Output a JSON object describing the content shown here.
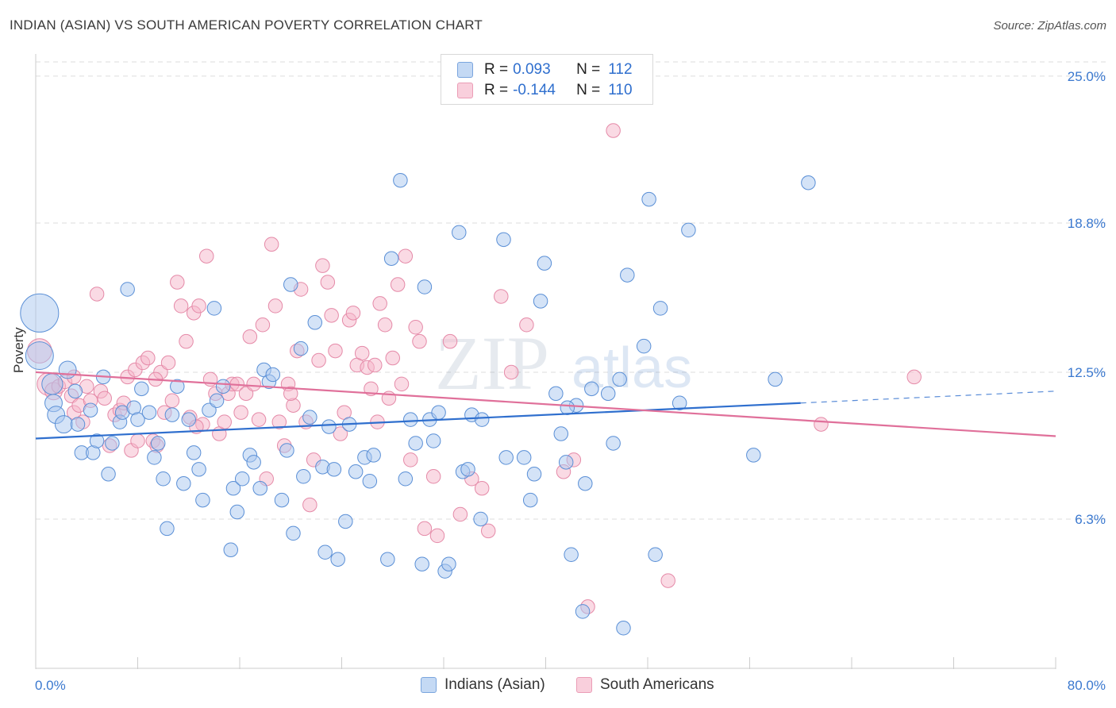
{
  "header": {
    "title": "INDIAN (ASIAN) VS SOUTH AMERICAN POVERTY CORRELATION CHART",
    "source": "Source: ZipAtlas.com"
  },
  "legend": {
    "rows": [
      {
        "r_label": "R =",
        "r_value": "0.093",
        "n_label": "N =",
        "n_value": "112"
      },
      {
        "r_label": "R =",
        "r_value": "-0.144",
        "n_label": "N =",
        "n_value": "110"
      }
    ]
  },
  "bottom_legend": {
    "indians": "Indians (Asian)",
    "south": "South Americans"
  },
  "watermark": {
    "zip": "ZIP",
    "atlas": "atlas"
  },
  "colors": {
    "blue_fill": "#a9c8ef",
    "blue_stroke": "#5a8fd6",
    "blue_line": "#2f6fce",
    "pink_fill": "#f5b6c9",
    "pink_stroke": "#e58aa8",
    "pink_line": "#e0709a",
    "tick_text": "#3a78cf",
    "grid": "#dddddd"
  },
  "chart_data": {
    "type": "scatter",
    "title": "INDIAN (ASIAN) VS SOUTH AMERICAN POVERTY CORRELATION CHART",
    "xlabel": "",
    "ylabel": "Poverty",
    "xlim": [
      0,
      80
    ],
    "ylim": [
      0,
      25.6
    ],
    "x_tick_labels": [
      "0.0%",
      "80.0%"
    ],
    "y_ticks": [
      6.3,
      12.5,
      18.8,
      25.0
    ],
    "y_tick_labels": [
      "6.3%",
      "12.5%",
      "18.8%",
      "25.0%"
    ],
    "grid": true,
    "legend_position": "top-center",
    "series": [
      {
        "name": "Indians (Asian)",
        "r": 0.093,
        "n": 112,
        "trend": {
          "x0": 0,
          "y0": 9.7,
          "x1": 60,
          "y1": 11.2,
          "dash_to": 80,
          "dash_y": 11.7
        },
        "points": [
          [
            0.3,
            15.0,
            2.2
          ],
          [
            0.3,
            13.2,
            1.6
          ],
          [
            1.3,
            12.0,
            1.2
          ],
          [
            1.4,
            11.2,
            1.0
          ],
          [
            1.6,
            10.7,
            1.0
          ],
          [
            2.2,
            10.3,
            1.0
          ],
          [
            2.5,
            12.6,
            1.0
          ],
          [
            3.1,
            11.7,
            0.8
          ],
          [
            3.3,
            10.3,
            0.8
          ],
          [
            3.6,
            9.1,
            0.8
          ],
          [
            4.3,
            10.9,
            0.8
          ],
          [
            4.5,
            9.1,
            0.8
          ],
          [
            4.8,
            9.6,
            0.8
          ],
          [
            5.3,
            12.3,
            0.8
          ],
          [
            5.7,
            8.2,
            0.8
          ],
          [
            6.0,
            9.5,
            0.8
          ],
          [
            6.6,
            10.4,
            0.8
          ],
          [
            6.8,
            10.8,
            0.8
          ],
          [
            7.2,
            16.0,
            0.8
          ],
          [
            7.7,
            11.0,
            0.8
          ],
          [
            8.0,
            10.5,
            0.8
          ],
          [
            8.3,
            11.8,
            0.8
          ],
          [
            8.9,
            10.8,
            0.8
          ],
          [
            9.3,
            8.9,
            0.8
          ],
          [
            9.6,
            9.5,
            0.8
          ],
          [
            10.0,
            8.0,
            0.8
          ],
          [
            10.3,
            5.9,
            0.8
          ],
          [
            10.7,
            10.7,
            0.8
          ],
          [
            11.1,
            11.9,
            0.8
          ],
          [
            11.6,
            7.8,
            0.8
          ],
          [
            12.0,
            10.5,
            0.8
          ],
          [
            12.4,
            9.1,
            0.8
          ],
          [
            12.8,
            8.4,
            0.8
          ],
          [
            13.1,
            7.1,
            0.8
          ],
          [
            13.6,
            10.9,
            0.8
          ],
          [
            14.0,
            15.2,
            0.8
          ],
          [
            14.2,
            11.3,
            0.8
          ],
          [
            14.7,
            11.9,
            0.8
          ],
          [
            15.3,
            5.0,
            0.8
          ],
          [
            15.5,
            7.6,
            0.8
          ],
          [
            15.8,
            6.6,
            0.8
          ],
          [
            16.2,
            8.0,
            0.8
          ],
          [
            16.8,
            9.0,
            0.8
          ],
          [
            17.1,
            8.7,
            0.8
          ],
          [
            17.6,
            7.6,
            0.8
          ],
          [
            17.9,
            12.6,
            0.8
          ],
          [
            18.3,
            12.1,
            0.8
          ],
          [
            18.6,
            12.4,
            0.8
          ],
          [
            19.3,
            7.1,
            0.8
          ],
          [
            19.7,
            9.2,
            0.8
          ],
          [
            20.0,
            16.2,
            0.8
          ],
          [
            20.2,
            5.7,
            0.8
          ],
          [
            20.8,
            13.5,
            0.8
          ],
          [
            21.0,
            8.1,
            0.8
          ],
          [
            21.5,
            10.6,
            0.8
          ],
          [
            21.9,
            14.6,
            0.8
          ],
          [
            22.5,
            8.5,
            0.8
          ],
          [
            22.7,
            4.9,
            0.8
          ],
          [
            23.0,
            10.2,
            0.8
          ],
          [
            23.4,
            8.4,
            0.8
          ],
          [
            23.7,
            4.6,
            0.8
          ],
          [
            24.3,
            6.2,
            0.8
          ],
          [
            24.6,
            10.3,
            0.8
          ],
          [
            25.1,
            8.3,
            0.8
          ],
          [
            25.8,
            8.9,
            0.8
          ],
          [
            26.2,
            7.9,
            0.8
          ],
          [
            26.5,
            9.0,
            0.8
          ],
          [
            27.6,
            4.6,
            0.8
          ],
          [
            27.9,
            17.3,
            0.8
          ],
          [
            28.6,
            20.6,
            0.8
          ],
          [
            29.0,
            8.0,
            0.8
          ],
          [
            29.4,
            10.5,
            0.8
          ],
          [
            29.8,
            9.5,
            0.8
          ],
          [
            30.3,
            4.4,
            0.8
          ],
          [
            30.5,
            16.1,
            0.8
          ],
          [
            30.9,
            10.5,
            0.8
          ],
          [
            31.2,
            9.6,
            0.8
          ],
          [
            31.6,
            10.8,
            0.8
          ],
          [
            32.1,
            4.1,
            0.8
          ],
          [
            32.4,
            4.4,
            0.8
          ],
          [
            33.2,
            18.4,
            0.8
          ],
          [
            33.5,
            8.3,
            0.8
          ],
          [
            33.9,
            8.4,
            0.8
          ],
          [
            34.2,
            10.7,
            0.8
          ],
          [
            34.9,
            6.3,
            0.8
          ],
          [
            35.0,
            10.5,
            0.8
          ],
          [
            36.7,
            18.1,
            0.8
          ],
          [
            36.9,
            8.9,
            0.8
          ],
          [
            38.3,
            8.9,
            0.8
          ],
          [
            38.8,
            7.1,
            0.8
          ],
          [
            39.1,
            8.2,
            0.8
          ],
          [
            39.6,
            15.5,
            0.8
          ],
          [
            39.9,
            17.1,
            0.8
          ],
          [
            40.8,
            11.6,
            0.8
          ],
          [
            41.2,
            9.9,
            0.8
          ],
          [
            41.6,
            8.7,
            0.8
          ],
          [
            42.0,
            4.8,
            0.8
          ],
          [
            42.4,
            11.1,
            0.8
          ],
          [
            42.9,
            2.4,
            0.8
          ],
          [
            43.1,
            7.8,
            0.8
          ],
          [
            43.6,
            11.8,
            0.8
          ],
          [
            44.9,
            11.6,
            0.8
          ],
          [
            45.3,
            9.5,
            0.8
          ],
          [
            45.8,
            12.2,
            0.8
          ],
          [
            46.4,
            16.6,
            0.8
          ],
          [
            48.1,
            19.8,
            0.8
          ],
          [
            48.6,
            4.8,
            0.8
          ],
          [
            49.0,
            15.2,
            0.8
          ],
          [
            50.5,
            11.2,
            0.8
          ],
          [
            51.2,
            18.5,
            0.8
          ],
          [
            56.3,
            9.0,
            0.8
          ],
          [
            58.0,
            12.2,
            0.8
          ],
          [
            60.6,
            20.5,
            0.8
          ],
          [
            47.7,
            13.6,
            0.8
          ],
          [
            41.7,
            11.0,
            0.8
          ],
          [
            46.1,
            1.7,
            0.8
          ]
        ]
      },
      {
        "name": "South Americans",
        "r": -0.144,
        "n": 110,
        "trend": {
          "x0": 0,
          "y0": 12.5,
          "x1": 80,
          "y1": 9.8
        },
        "points": [
          [
            0.3,
            13.4,
            1.4
          ],
          [
            1.0,
            12.0,
            1.3
          ],
          [
            1.4,
            11.7,
            1.0
          ],
          [
            1.8,
            11.9,
            0.8
          ],
          [
            2.3,
            12.1,
            0.8
          ],
          [
            2.8,
            11.5,
            0.8
          ],
          [
            3.0,
            10.8,
            0.8
          ],
          [
            3.4,
            11.1,
            0.8
          ],
          [
            3.7,
            10.4,
            0.8
          ],
          [
            4.0,
            11.9,
            0.8
          ],
          [
            4.3,
            11.3,
            0.8
          ],
          [
            4.8,
            15.8,
            0.8
          ],
          [
            5.1,
            11.7,
            0.8
          ],
          [
            5.4,
            11.4,
            0.8
          ],
          [
            5.8,
            9.4,
            0.8
          ],
          [
            6.2,
            10.7,
            0.8
          ],
          [
            6.6,
            10.9,
            0.8
          ],
          [
            6.9,
            11.2,
            0.8
          ],
          [
            7.2,
            12.3,
            0.8
          ],
          [
            7.5,
            9.2,
            0.8
          ],
          [
            7.8,
            12.6,
            0.8
          ],
          [
            8.0,
            9.6,
            0.8
          ],
          [
            8.4,
            12.9,
            0.8
          ],
          [
            8.8,
            13.1,
            0.8
          ],
          [
            9.2,
            9.6,
            0.8
          ],
          [
            9.5,
            9.4,
            0.8
          ],
          [
            9.8,
            12.5,
            0.8
          ],
          [
            10.1,
            10.8,
            0.8
          ],
          [
            10.4,
            12.9,
            0.8
          ],
          [
            10.7,
            11.3,
            0.8
          ],
          [
            11.1,
            16.3,
            0.8
          ],
          [
            11.4,
            15.3,
            0.8
          ],
          [
            11.8,
            13.8,
            0.8
          ],
          [
            12.1,
            10.6,
            0.8
          ],
          [
            12.4,
            15.0,
            0.8
          ],
          [
            12.8,
            15.3,
            0.8
          ],
          [
            13.1,
            10.3,
            0.8
          ],
          [
            13.4,
            17.4,
            0.8
          ],
          [
            13.7,
            12.2,
            0.8
          ],
          [
            14.1,
            11.6,
            0.8
          ],
          [
            14.4,
            9.9,
            0.8
          ],
          [
            14.8,
            10.4,
            0.8
          ],
          [
            15.1,
            11.6,
            0.8
          ],
          [
            15.4,
            12.0,
            0.8
          ],
          [
            15.8,
            12.0,
            0.8
          ],
          [
            16.1,
            10.8,
            0.8
          ],
          [
            16.5,
            11.6,
            0.8
          ],
          [
            16.8,
            14.0,
            0.8
          ],
          [
            17.1,
            12.0,
            0.8
          ],
          [
            17.5,
            10.5,
            0.8
          ],
          [
            17.8,
            14.5,
            0.8
          ],
          [
            18.1,
            8.0,
            0.8
          ],
          [
            18.5,
            17.9,
            0.8
          ],
          [
            18.8,
            15.3,
            0.8
          ],
          [
            19.1,
            10.4,
            0.8
          ],
          [
            19.5,
            9.4,
            0.8
          ],
          [
            19.8,
            12.0,
            0.8
          ],
          [
            20.2,
            11.1,
            0.8
          ],
          [
            20.5,
            13.4,
            0.8
          ],
          [
            20.8,
            16.0,
            0.8
          ],
          [
            21.2,
            10.4,
            0.8
          ],
          [
            21.5,
            6.9,
            0.8
          ],
          [
            21.8,
            8.8,
            0.8
          ],
          [
            22.2,
            13.0,
            0.8
          ],
          [
            22.5,
            17.0,
            0.8
          ],
          [
            22.9,
            16.3,
            0.8
          ],
          [
            23.2,
            14.9,
            0.8
          ],
          [
            23.5,
            13.4,
            0.8
          ],
          [
            23.9,
            9.9,
            0.8
          ],
          [
            24.2,
            10.8,
            0.8
          ],
          [
            24.6,
            14.7,
            0.8
          ],
          [
            24.9,
            15.0,
            0.8
          ],
          [
            25.2,
            12.8,
            0.8
          ],
          [
            25.6,
            13.3,
            0.8
          ],
          [
            26.0,
            12.7,
            0.8
          ],
          [
            26.3,
            11.8,
            0.8
          ],
          [
            26.6,
            12.8,
            0.8
          ],
          [
            27.0,
            15.4,
            0.8
          ],
          [
            27.4,
            14.5,
            0.8
          ],
          [
            27.7,
            11.4,
            0.8
          ],
          [
            28.0,
            13.1,
            0.8
          ],
          [
            28.4,
            16.2,
            0.8
          ],
          [
            28.7,
            12.0,
            0.8
          ],
          [
            29.0,
            17.4,
            0.8
          ],
          [
            29.4,
            8.8,
            0.8
          ],
          [
            29.8,
            14.4,
            0.8
          ],
          [
            30.1,
            13.8,
            0.8
          ],
          [
            30.5,
            5.9,
            0.8
          ],
          [
            31.2,
            8.1,
            0.8
          ],
          [
            31.5,
            5.6,
            0.8
          ],
          [
            32.5,
            13.8,
            0.8
          ],
          [
            33.3,
            6.5,
            0.8
          ],
          [
            35.0,
            7.6,
            0.8
          ],
          [
            35.5,
            5.8,
            0.8
          ],
          [
            36.5,
            15.7,
            0.8
          ],
          [
            38.5,
            14.5,
            0.8
          ],
          [
            41.4,
            8.3,
            0.8
          ],
          [
            42.2,
            8.8,
            0.8
          ],
          [
            43.3,
            2.6,
            0.8
          ],
          [
            45.3,
            22.7,
            0.8
          ],
          [
            49.6,
            3.7,
            0.8
          ],
          [
            61.6,
            10.3,
            0.8
          ],
          [
            68.9,
            12.3,
            0.8
          ],
          [
            37.3,
            12.5,
            0.8
          ],
          [
            34.2,
            8.0,
            0.8
          ],
          [
            20.0,
            11.6,
            0.8
          ],
          [
            3.0,
            12.3,
            0.8
          ],
          [
            12.6,
            10.2,
            0.8
          ],
          [
            26.8,
            10.4,
            0.8
          ],
          [
            9.4,
            12.2,
            0.8
          ]
        ]
      }
    ]
  }
}
